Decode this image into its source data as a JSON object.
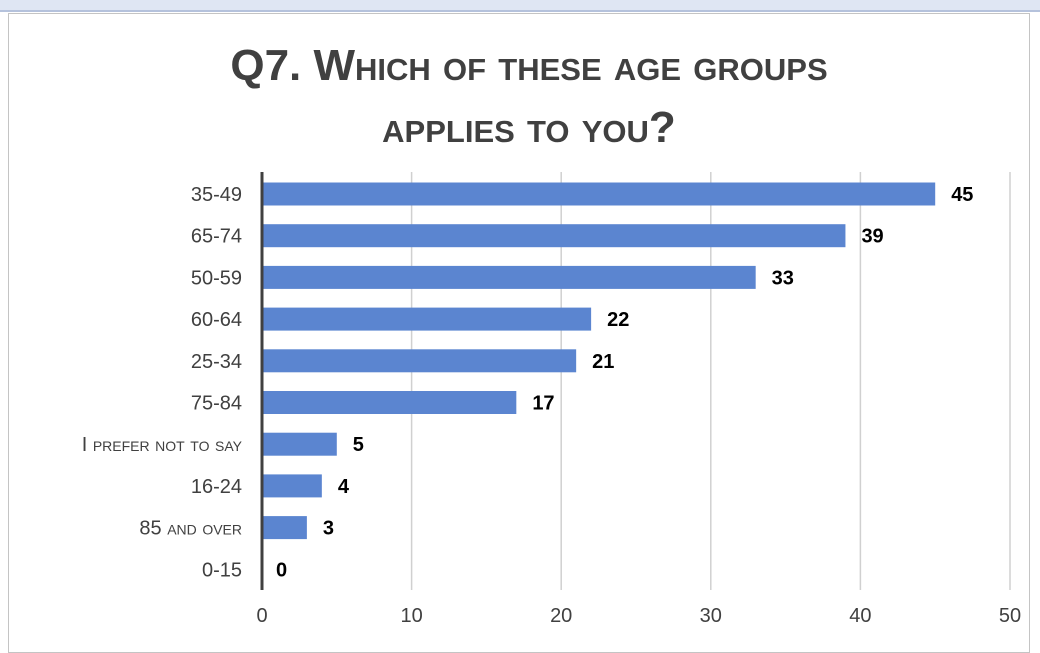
{
  "chart_data": {
    "type": "bar",
    "orientation": "horizontal",
    "title_lines": [
      "Q7. Which of these age groups",
      "applies to you?"
    ],
    "categories": [
      "35-49",
      "65-74",
      "50-59",
      "60-64",
      "25-34",
      "75-84",
      "I prefer not to say",
      "16-24",
      "85 and over",
      "0-15"
    ],
    "values": [
      45,
      39,
      33,
      22,
      21,
      17,
      5,
      4,
      3,
      0
    ],
    "xlim": [
      0,
      50
    ],
    "xticks": [
      0,
      10,
      20,
      30,
      40,
      50
    ],
    "xlabel": "",
    "ylabel": "",
    "grid": true,
    "bar_color": "#5b85d0",
    "data_labels": true
  }
}
